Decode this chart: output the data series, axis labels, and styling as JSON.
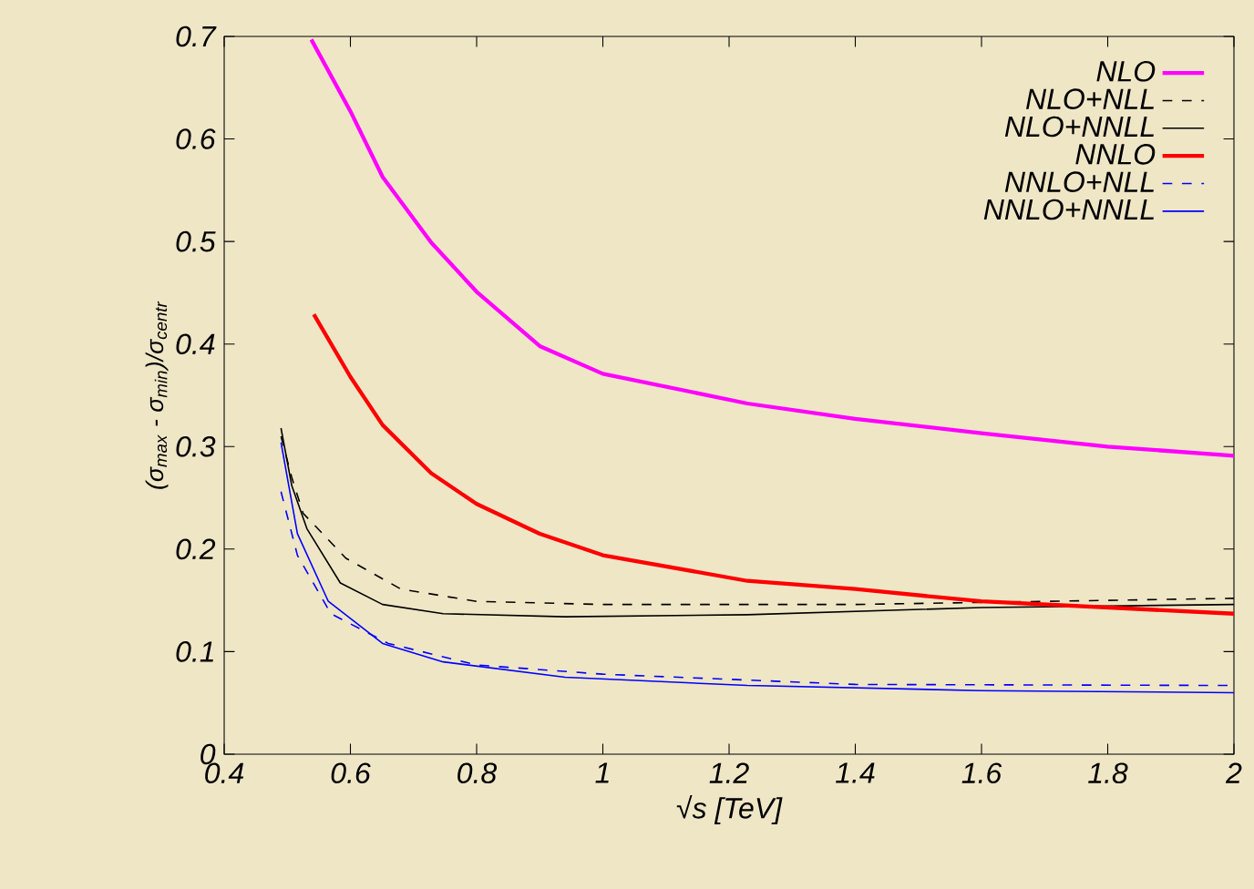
{
  "chart_data": {
    "type": "line",
    "xlabel": "√s [TeV]",
    "ylabel": "(σ$_{max}$ - σ$_{min}$)/σ$_{centr}$",
    "xlim": [
      0.4,
      2
    ],
    "ylim": [
      0,
      0.7
    ],
    "xticks": [
      0.4,
      0.6,
      0.8,
      1,
      1.2,
      1.4,
      1.6,
      1.8,
      2
    ],
    "yticks": [
      0,
      0.1,
      0.2,
      0.3,
      0.4,
      0.5,
      0.6,
      0.7
    ],
    "legend": "top right",
    "grid": false,
    "marker": "none",
    "series": [
      {
        "name": "NLO",
        "color": "#ff00ff",
        "line_style": "solid",
        "x": [
          0.538,
          0.6,
          0.651,
          0.728,
          0.8,
          0.9,
          1.0,
          1.229,
          1.4,
          1.6,
          1.8,
          2.0
        ],
        "values": [
          0.697,
          0.627,
          0.563,
          0.499,
          0.451,
          0.398,
          0.371,
          0.342,
          0.327,
          0.313,
          0.3,
          0.291
        ]
      },
      {
        "name": "NLO+NLL",
        "color": "#000000",
        "line_style": "dashed",
        "x": [
          0.49,
          0.507,
          0.525,
          0.593,
          0.68,
          0.8,
          1.0,
          1.4,
          1.8,
          2.0
        ],
        "values": [
          0.31,
          0.27,
          0.235,
          0.191,
          0.161,
          0.149,
          0.146,
          0.146,
          0.15,
          0.152
        ]
      },
      {
        "name": "NLO+NNLL",
        "color": "#000000",
        "line_style": "solid",
        "x": [
          0.49,
          0.507,
          0.531,
          0.584,
          0.651,
          0.747,
          0.94,
          1.229,
          1.6,
          2.0
        ],
        "values": [
          0.318,
          0.262,
          0.22,
          0.167,
          0.146,
          0.137,
          0.134,
          0.136,
          0.143,
          0.146
        ]
      },
      {
        "name": "NNLO",
        "color": "#ff0000",
        "line_style": "solid",
        "x": [
          0.542,
          0.6,
          0.651,
          0.728,
          0.8,
          0.9,
          1.0,
          1.229,
          1.4,
          1.6,
          1.8,
          2.0
        ],
        "values": [
          0.429,
          0.368,
          0.321,
          0.274,
          0.244,
          0.215,
          0.194,
          0.169,
          0.161,
          0.149,
          0.143,
          0.137
        ]
      },
      {
        "name": "NNLO+NLL",
        "color": "#0000ff",
        "line_style": "dashed",
        "x": [
          0.49,
          0.516,
          0.569,
          0.66,
          0.8,
          1.0,
          1.4,
          2.0
        ],
        "values": [
          0.256,
          0.194,
          0.137,
          0.108,
          0.087,
          0.078,
          0.068,
          0.067
        ]
      },
      {
        "name": "NNLO+NNLL",
        "color": "#0000ff",
        "line_style": "solid",
        "x": [
          0.49,
          0.516,
          0.565,
          0.651,
          0.747,
          0.94,
          1.229,
          1.6,
          2.0
        ],
        "values": [
          0.304,
          0.215,
          0.149,
          0.108,
          0.09,
          0.075,
          0.067,
          0.062,
          0.06
        ]
      }
    ]
  }
}
